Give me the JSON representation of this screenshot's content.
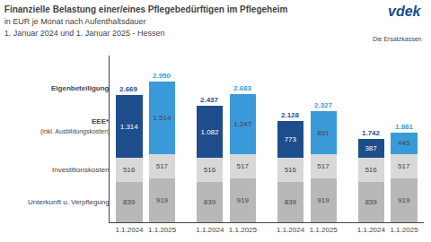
{
  "chart_data": {
    "type": "bar",
    "stacked": true,
    "title": "Finanzielle Belastung einer/eines Pflegebedürftigen im Pflegeheim",
    "subtitle": [
      "in EUR je Monat nach Aufenthaltsdauer",
      "1. Januar 2024 und 1. Januar 2025 - Hessen"
    ],
    "categories": [
      "1.1.2024",
      "1.1.2025",
      "1.1.2024",
      "1.1.2025",
      "1.1.2024",
      "1.1.2025",
      "1.1.2024",
      "1.1.2025"
    ],
    "series": [
      {
        "name": "Unterkunft u. Verpflegung",
        "color": "#b8b8b8",
        "values": [
          839,
          919,
          839,
          919,
          839,
          919,
          839,
          919
        ]
      },
      {
        "name": "Investitionskosten",
        "color": "#d8d8d8",
        "values": [
          516,
          517,
          516,
          517,
          516,
          517,
          516,
          517
        ]
      },
      {
        "name": "EEE*",
        "colors": [
          "#1e4d8c",
          "#3a9ad9",
          "#1e4d8c",
          "#3a9ad9",
          "#1e4d8c",
          "#3a9ad9",
          "#1e4d8c",
          "#3a9ad9"
        ],
        "values": [
          1314,
          1514,
          1082,
          1247,
          773,
          891,
          387,
          445
        ],
        "value_labels": [
          "1.314",
          "1.514",
          "1.082",
          "1.247",
          "773",
          "891",
          "387",
          "445"
        ]
      }
    ],
    "totals": {
      "name": "Eigenbeteiligung",
      "values": [
        2669,
        2950,
        2437,
        2683,
        2128,
        2327,
        1742,
        1881
      ],
      "value_labels": [
        "2.669",
        "2.950",
        "2.437",
        "2.683",
        "2.128",
        "2.327",
        "1.742",
        "1.881"
      ],
      "colors": [
        "#1e4d8c",
        "#3a9ad9",
        "#1e4d8c",
        "#3a9ad9",
        "#1e4d8c",
        "#3a9ad9",
        "#1e4d8c",
        "#3a9ad9"
      ]
    },
    "annotations": [
      {
        "text": "vdek",
        "color": "#1e4d8c"
      },
      {
        "text": "Die Ersatzkassen"
      },
      {
        "text": "(inkl. Ausbildungskosten)"
      }
    ],
    "data_labels": true,
    "ylim": [
      0,
      3500
    ],
    "grid": false,
    "tick_labels": "x"
  }
}
